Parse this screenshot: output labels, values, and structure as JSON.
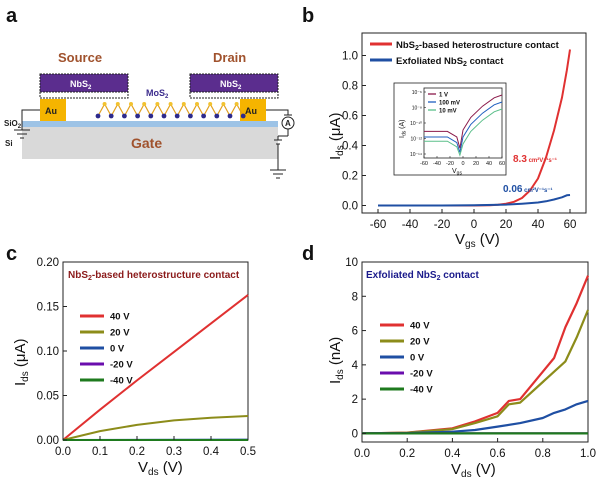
{
  "panel_labels": [
    "a",
    "b",
    "c",
    "d"
  ],
  "schematic": {
    "source": "Source",
    "drain": "Drain",
    "nbs2": "NbS",
    "nbs2_sub": "2",
    "au": "Au",
    "mos2": "MoS",
    "mos2_sub": "2",
    "sio2": "SiO",
    "sio2_sub": "2",
    "si": "Si",
    "gate": "Gate",
    "ammeter": "A",
    "colors": {
      "nbs2": "#5b2d8e",
      "au": "#f5b400",
      "gate": "#d9d9d9",
      "gate_text": "#a0522d",
      "sio2": "#9dc3e6",
      "mos2": "#3b2b8c"
    }
  },
  "chart_data": [
    {
      "type": "line",
      "xlabel": "V",
      "xlabel_sub": "gs",
      "xlabel_unit": " (V)",
      "ylabel": "I",
      "ylabel_sub": "ds",
      "ylabel_unit": " (μA)",
      "xlim": [
        -70,
        70
      ],
      "ylim": [
        -0.05,
        1.15
      ],
      "xticks": [
        "-60",
        "-40",
        "-20",
        "0",
        "20",
        "40",
        "60"
      ],
      "yticks": [
        "0.0",
        "0.2",
        "0.4",
        "0.6",
        "0.8",
        "1.0"
      ],
      "legend_position": "top-right",
      "series": [
        {
          "name": "NbS",
          "name_sub": "2",
          "name_rest": "-based heterostructure contact",
          "color": "#e03131",
          "x": [
            -60,
            -20,
            0,
            10,
            15,
            20,
            25,
            30,
            35,
            40,
            45,
            50,
            55,
            58,
            60
          ],
          "y": [
            0,
            0,
            0,
            0.002,
            0.005,
            0.012,
            0.025,
            0.05,
            0.1,
            0.18,
            0.32,
            0.5,
            0.72,
            0.9,
            1.04
          ]
        },
        {
          "name": "Exfoliated NbS",
          "name_sub": "2",
          "name_rest": " contact",
          "color": "#1f4fa3",
          "x": [
            -60,
            -20,
            0,
            20,
            30,
            40,
            45,
            50,
            55,
            58,
            60
          ],
          "y": [
            0,
            0,
            0.002,
            0.006,
            0.012,
            0.02,
            0.028,
            0.04,
            0.055,
            0.068,
            0.07
          ]
        }
      ],
      "annotations": [
        {
          "text": "8.3",
          "unit": " cm²V⁻¹s⁻¹",
          "color": "#e03131"
        },
        {
          "text": "0.06",
          "unit": " cm²V⁻¹s⁻¹",
          "color": "#1f4fa3"
        }
      ],
      "inset": {
        "type": "line",
        "xlabel": "V",
        "xlabel_sub": "gs",
        "ylabel": "I",
        "ylabel_sub": "ds",
        "ylabel_unit": " (A)",
        "xticks": [
          "-60",
          "-40",
          "-20",
          "0",
          "20",
          "40",
          "60"
        ],
        "yticks": [
          "10⁻⁶",
          "10⁻⁸",
          "10⁻¹⁰",
          "10⁻¹²",
          "10⁻¹⁴"
        ],
        "log_y": true,
        "series": [
          {
            "name": "1 V",
            "color": "#8b1a4a"
          },
          {
            "name": "100 mV",
            "color": "#1f5fbf"
          },
          {
            "name": "10 mV",
            "color": "#5bbf8a"
          }
        ]
      }
    },
    {
      "type": "line",
      "title": "NbS",
      "title_sub": "2",
      "title_rest": "-based heterostructure contact",
      "title_color": "#8b1a1a",
      "xlabel": "V",
      "xlabel_sub": "ds",
      "xlabel_unit": " (V)",
      "ylabel": "I",
      "ylabel_sub": "ds",
      "ylabel_unit": " (μA)",
      "xlim": [
        0,
        0.5
      ],
      "ylim": [
        0,
        0.2
      ],
      "xticks": [
        "0.0",
        "0.1",
        "0.2",
        "0.3",
        "0.4",
        "0.5"
      ],
      "yticks": [
        "0.00",
        "0.05",
        "0.10",
        "0.15",
        "0.20"
      ],
      "legend_position": "left",
      "series": [
        {
          "name": "40 V",
          "color": "#e03131",
          "x": [
            0,
            0.1,
            0.2,
            0.3,
            0.4,
            0.5
          ],
          "y": [
            0,
            0.034,
            0.067,
            0.099,
            0.131,
            0.163
          ]
        },
        {
          "name": "20 V",
          "color": "#8c8c1a",
          "x": [
            0,
            0.1,
            0.2,
            0.3,
            0.4,
            0.45,
            0.5
          ],
          "y": [
            0,
            0.01,
            0.017,
            0.022,
            0.025,
            0.026,
            0.027
          ]
        },
        {
          "name": "0 V",
          "color": "#1f4fa3",
          "x": [
            0,
            0.5
          ],
          "y": [
            0,
            0.0005
          ]
        },
        {
          "name": "-20 V",
          "color": "#6a0dad",
          "x": [
            0,
            0.5
          ],
          "y": [
            0,
            0
          ]
        },
        {
          "name": "-40 V",
          "color": "#1e7a1e",
          "x": [
            0,
            0.5
          ],
          "y": [
            0,
            0
          ]
        }
      ]
    },
    {
      "type": "line",
      "title": "Exfoliated NbS",
      "title_sub": "2",
      "title_rest": " contact",
      "title_color": "#1a1a8b",
      "xlabel": "V",
      "xlabel_sub": "ds",
      "xlabel_unit": " (V)",
      "ylabel": "I",
      "ylabel_sub": "ds",
      "ylabel_unit": " (nA)",
      "xlim": [
        0,
        1.0
      ],
      "ylim": [
        -0.5,
        10
      ],
      "xticks": [
        "0.0",
        "0.2",
        "0.4",
        "0.6",
        "0.8",
        "1.0"
      ],
      "yticks": [
        "0",
        "2",
        "4",
        "6",
        "8",
        "10"
      ],
      "legend_position": "left",
      "series": [
        {
          "name": "40 V",
          "color": "#e03131",
          "x": [
            0,
            0.2,
            0.4,
            0.5,
            0.6,
            0.65,
            0.7,
            0.8,
            0.85,
            0.9,
            0.95,
            1.0
          ],
          "y": [
            0,
            0.05,
            0.3,
            0.7,
            1.2,
            1.9,
            2.0,
            3.6,
            4.4,
            6.2,
            7.6,
            9.2
          ]
        },
        {
          "name": "20 V",
          "color": "#8c8c1a",
          "x": [
            0,
            0.2,
            0.4,
            0.5,
            0.6,
            0.65,
            0.7,
            0.8,
            0.85,
            0.9,
            0.95,
            1.0
          ],
          "y": [
            0,
            0.04,
            0.25,
            0.6,
            1.0,
            1.7,
            1.8,
            3.0,
            3.6,
            4.2,
            5.6,
            7.2
          ]
        },
        {
          "name": "0 V",
          "color": "#1f4fa3",
          "x": [
            0,
            0.2,
            0.4,
            0.5,
            0.6,
            0.7,
            0.8,
            0.85,
            0.9,
            0.95,
            1.0
          ],
          "y": [
            0,
            0.02,
            0.1,
            0.2,
            0.4,
            0.6,
            0.9,
            1.2,
            1.4,
            1.7,
            1.9
          ]
        },
        {
          "name": "-20 V",
          "color": "#6a0dad",
          "x": [
            0,
            1.0
          ],
          "y": [
            0,
            0
          ]
        },
        {
          "name": "-40 V",
          "color": "#1e7a1e",
          "x": [
            0,
            1.0
          ],
          "y": [
            0,
            0
          ]
        }
      ]
    }
  ]
}
